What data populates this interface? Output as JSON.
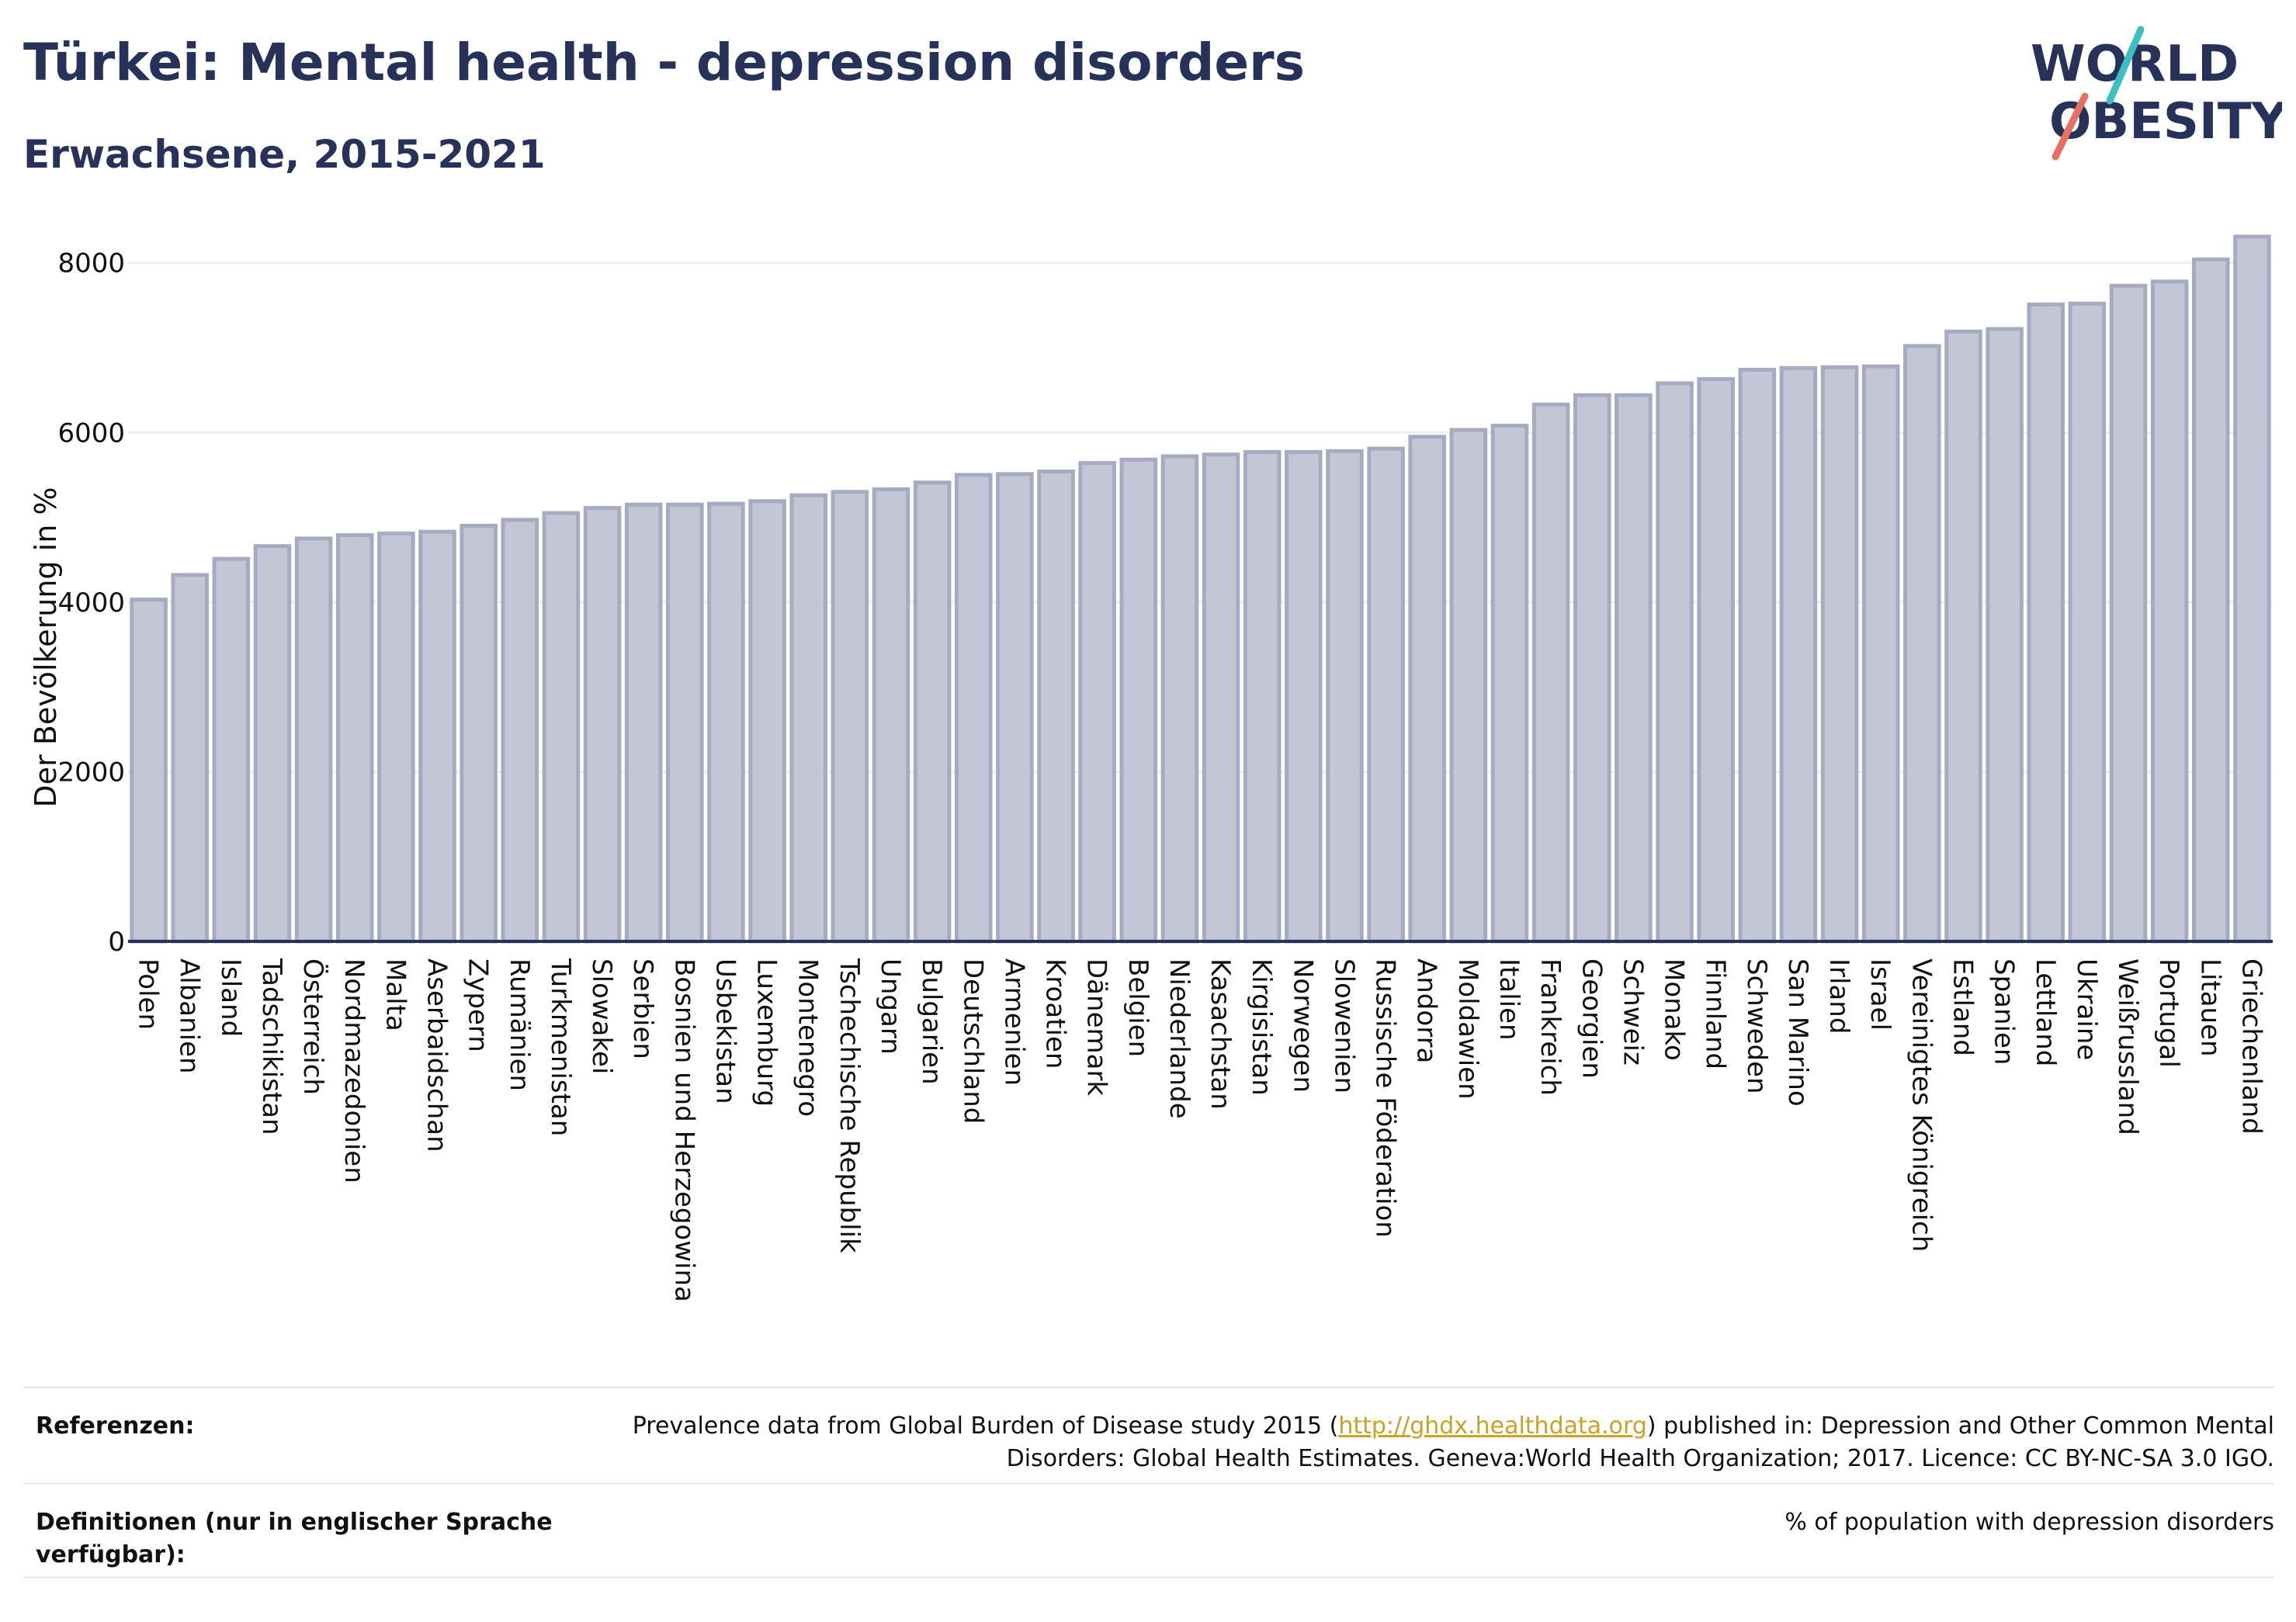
{
  "header": {
    "title": "Türkei: Mental health - depression disorders",
    "subtitle": "Erwachsene, 2015-2021"
  },
  "logo": {
    "line1": "WORLD",
    "line2": "OBESITY",
    "accent_teal": "#3bbfc1",
    "accent_coral": "#e8705f",
    "text_color": "#263259"
  },
  "colors": {
    "bar_fill": "#c3c6d4",
    "bar_stroke": "#a6abc2",
    "axis": "#263259",
    "grid": "#eeeeee"
  },
  "chart_data": {
    "type": "bar",
    "ylabel": "Der Bevölkerung in %",
    "xlabel": "",
    "ylim": [
      0,
      8400
    ],
    "yticks": [
      0,
      2000,
      4000,
      6000,
      8000
    ],
    "grid": true,
    "categories": [
      "Polen",
      "Albanien",
      "Island",
      "Tadschikistan",
      "Österreich",
      "Nordmazedonien",
      "Malta",
      "Aserbaidschan",
      "Zypern",
      "Rumänien",
      "Turkmenistan",
      "Slowakei",
      "Serbien",
      "Bosnien und Herzegowina",
      "Usbekistan",
      "Luxemburg",
      "Montenegro",
      "Tschechische Republik",
      "Ungarn",
      "Bulgarien",
      "Deutschland",
      "Armenien",
      "Kroatien",
      "Dänemark",
      "Belgien",
      "Niederlande",
      "Kasachstan",
      "Kirgisistan",
      "Norwegen",
      "Slowenien",
      "Russische Föderation",
      "Andorra",
      "Moldawien",
      "Italien",
      "Frankreich",
      "Georgien",
      "Schweiz",
      "Monako",
      "Finnland",
      "Schweden",
      "San Marino",
      "Irland",
      "Israel",
      "Vereinigtes Königreich",
      "Estland",
      "Spanien",
      "Lettland",
      "Ukraine",
      "Weißrussland",
      "Portugal",
      "Litauen",
      "Griechenland"
    ],
    "values": [
      4030,
      4320,
      4510,
      4660,
      4750,
      4790,
      4810,
      4830,
      4900,
      4970,
      5050,
      5110,
      5150,
      5150,
      5160,
      5190,
      5260,
      5300,
      5330,
      5410,
      5500,
      5510,
      5540,
      5640,
      5680,
      5720,
      5740,
      5770,
      5770,
      5780,
      5810,
      5950,
      6030,
      6080,
      6330,
      6440,
      6440,
      6580,
      6630,
      6740,
      6760,
      6770,
      6780,
      7020,
      7190,
      7220,
      7510,
      7520,
      7730,
      7780,
      8040,
      8310
    ]
  },
  "footer": {
    "references_label": "Referenzen:",
    "references_text_before": "Prevalence data from Global Burden of Disease study 2015 (",
    "references_link": "http://ghdx.healthdata.org",
    "references_text_after": ") published in: Depression and Other Common Mental Disorders: Global Health Estimates. Geneva:World Health Organization; 2017. Licence: CC BY-NC-SA 3.0 IGO.",
    "definitions_label": "Definitionen (nur in englischer Sprache verfügbar):",
    "definitions_text": "% of population with depression disorders"
  }
}
